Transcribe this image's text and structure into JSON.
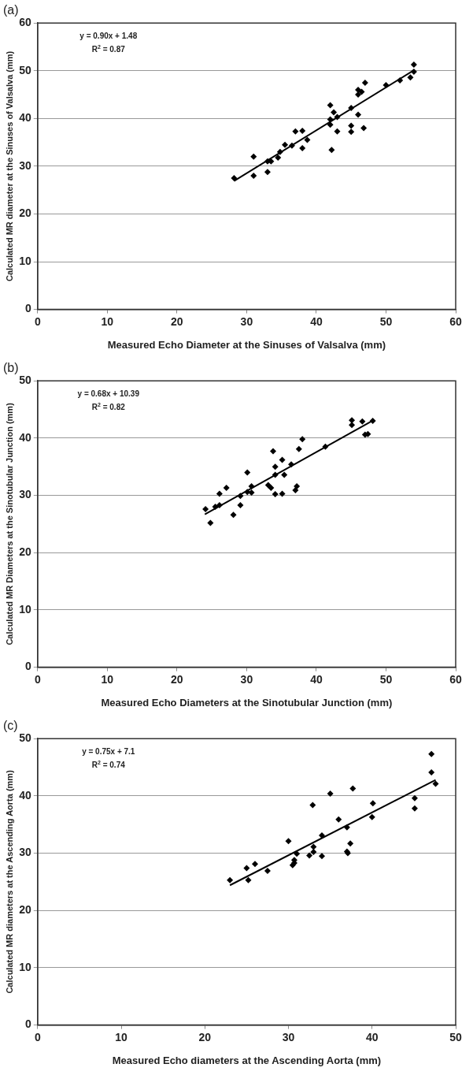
{
  "chart_data": [
    {
      "type": "scatter",
      "title": "(a)",
      "xlabel": "Measured Echo Diameter at the Sinuses of Valsalva (mm)",
      "ylabel": "Calculated MR diameter at the Sinuses of Valsalva (mm)",
      "annotations": [
        "y = 0.90x + 1.48",
        "R$^{2}$ = 0.87"
      ],
      "xlim": [
        0,
        60
      ],
      "xticks": [
        0,
        10,
        20,
        30,
        40,
        50,
        60
      ],
      "ylim": [
        0,
        60
      ],
      "yticks": [
        0,
        10,
        20,
        30,
        40,
        50,
        60
      ],
      "grid": "y",
      "legend": false,
      "marker": "diamond",
      "series": [
        {
          "color": "#000000",
          "x": [
            28.2,
            31,
            31,
            33,
            33,
            33.5,
            34.5,
            34.8,
            35.5,
            36.5,
            37,
            38,
            38,
            38.7,
            42,
            42,
            42,
            42.5,
            42.2,
            43,
            43,
            45,
            45,
            45,
            46,
            46,
            46,
            46.5,
            47,
            46.8,
            50,
            52,
            53.5,
            54,
            54
          ],
          "values": [
            27.5,
            32,
            28,
            31,
            28.8,
            31,
            31.8,
            33,
            34.5,
            34.3,
            37.3,
            37.4,
            33.8,
            35.5,
            42.8,
            39.8,
            38.7,
            41.3,
            33.4,
            40.3,
            37.3,
            42.2,
            38.5,
            37.2,
            40.8,
            46,
            45,
            45.6,
            47.5,
            38,
            47,
            48,
            48.6,
            49.8,
            51.3
          ]
        },
        {
          "type": "line",
          "color": "#000000",
          "marker": "none",
          "x": [
            28.2,
            54
          ],
          "values": [
            26.9,
            50.1
          ]
        }
      ]
    },
    {
      "type": "scatter",
      "title": "(b)",
      "xlabel": "Measured Echo Diameters at the Sinotubular Junction (mm)",
      "ylabel": "Calculated MR Diameters at the Sinotubular Junction (mm)",
      "annotations": [
        "y = 0.68x + 10.39",
        "R$^{2}$ = 0.82"
      ],
      "xlim": [
        0,
        60
      ],
      "xticks": [
        0,
        10,
        20,
        30,
        40,
        50,
        60
      ],
      "ylim": [
        0,
        50
      ],
      "yticks": [
        0,
        10,
        20,
        30,
        40,
        50
      ],
      "grid": "y",
      "legend": false,
      "marker": "diamond",
      "series": [
        {
          "color": "#000000",
          "x": [
            24.1,
            24.8,
            25.5,
            26.1,
            26.1,
            27.1,
            28.1,
            29.1,
            29.1,
            30.1,
            30.1,
            30.7,
            30.7,
            33.1,
            33.5,
            33.8,
            34.1,
            34.1,
            34.1,
            35.1,
            35.1,
            35.4,
            36.4,
            37,
            37.2,
            37.5,
            38,
            41.3,
            45.1,
            45.1,
            46.6,
            47,
            47.4,
            48.1
          ],
          "values": [
            27.6,
            25.2,
            28,
            28.3,
            30.3,
            31.3,
            26.6,
            28.3,
            29.9,
            34,
            30.6,
            31.6,
            30.5,
            31.8,
            31.3,
            37.7,
            35,
            33.6,
            30.2,
            36.2,
            30.3,
            33.6,
            35.4,
            30.9,
            31.6,
            38.1,
            39.8,
            38.5,
            43.1,
            42.3,
            42.9,
            40.6,
            40.7,
            43
          ]
        },
        {
          "type": "line",
          "color": "#000000",
          "marker": "none",
          "x": [
            24,
            48
          ],
          "values": [
            26.7,
            43
          ]
        }
      ]
    },
    {
      "type": "scatter",
      "title": "(c)",
      "xlabel": "Measured Echo diameters at the Ascending Aorta (mm)",
      "ylabel": "Calculated MR diameters at the Ascending Aorta (mm)",
      "annotations": [
        "y = 0.75x + 7.1",
        "R$^{2}$ = 0.74"
      ],
      "xlim": [
        0,
        50
      ],
      "xticks": [
        0,
        10,
        20,
        30,
        40,
        50
      ],
      "ylim": [
        0,
        50
      ],
      "yticks": [
        0,
        10,
        20,
        30,
        40,
        50
      ],
      "grid": "y",
      "legend": false,
      "marker": "diamond",
      "series": [
        {
          "color": "#000000",
          "x": [
            23,
            25,
            25.2,
            26,
            27.5,
            30,
            30.5,
            30.7,
            30.7,
            31,
            32.5,
            32.9,
            33,
            33,
            34,
            34,
            35,
            36,
            37,
            37,
            37.1,
            37.4,
            37.7,
            40,
            40.1,
            45.1,
            45.1,
            47.1,
            47.1,
            47.6
          ],
          "values": [
            25.3,
            27.4,
            25.3,
            28.1,
            26.9,
            32.1,
            27.9,
            28.3,
            28.8,
            29.9,
            29.6,
            38.4,
            31.1,
            30.2,
            33.1,
            29.5,
            40.4,
            35.9,
            34.5,
            30.3,
            30,
            31.7,
            41.3,
            36.3,
            38.7,
            39.6,
            37.8,
            47.3,
            44.1,
            42.1
          ]
        },
        {
          "type": "line",
          "color": "#000000",
          "marker": "none",
          "x": [
            23,
            47.6
          ],
          "values": [
            24.4,
            42.8
          ]
        }
      ]
    }
  ]
}
